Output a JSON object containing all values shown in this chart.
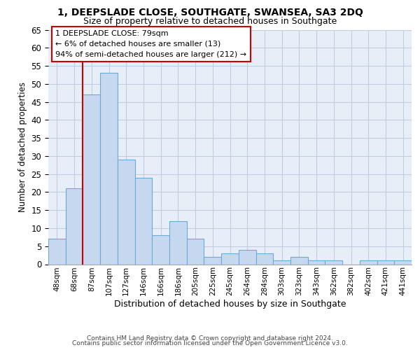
{
  "title": "1, DEEPSLADE CLOSE, SOUTHGATE, SWANSEA, SA3 2DQ",
  "subtitle": "Size of property relative to detached houses in Southgate",
  "xlabel": "Distribution of detached houses by size in Southgate",
  "ylabel": "Number of detached properties",
  "categories": [
    "48sqm",
    "68sqm",
    "87sqm",
    "107sqm",
    "127sqm",
    "146sqm",
    "166sqm",
    "186sqm",
    "205sqm",
    "225sqm",
    "245sqm",
    "264sqm",
    "284sqm",
    "303sqm",
    "323sqm",
    "343sqm",
    "362sqm",
    "382sqm",
    "402sqm",
    "421sqm",
    "441sqm"
  ],
  "values": [
    7,
    21,
    47,
    53,
    29,
    24,
    8,
    12,
    7,
    2,
    3,
    4,
    3,
    1,
    2,
    1,
    1,
    0,
    1,
    1,
    1
  ],
  "bar_color": "#c5d8f0",
  "bar_edge_color": "#6aaad4",
  "vline_color": "#cc0000",
  "annotation_box_edge": "#cc0000",
  "ylim": [
    0,
    65
  ],
  "yticks": [
    0,
    5,
    10,
    15,
    20,
    25,
    30,
    35,
    40,
    45,
    50,
    55,
    60,
    65
  ],
  "marker_label": "1 DEEPSLADE CLOSE: 79sqm",
  "marker_line1": "← 6% of detached houses are smaller (13)",
  "marker_line2": "94% of semi-detached houses are larger (212) →",
  "footer1": "Contains HM Land Registry data © Crown copyright and database right 2024.",
  "footer2": "Contains public sector information licensed under the Open Government Licence v3.0.",
  "bg_color": "#e8eef8",
  "grid_color": "#c0cce0",
  "vline_x": 1.5
}
